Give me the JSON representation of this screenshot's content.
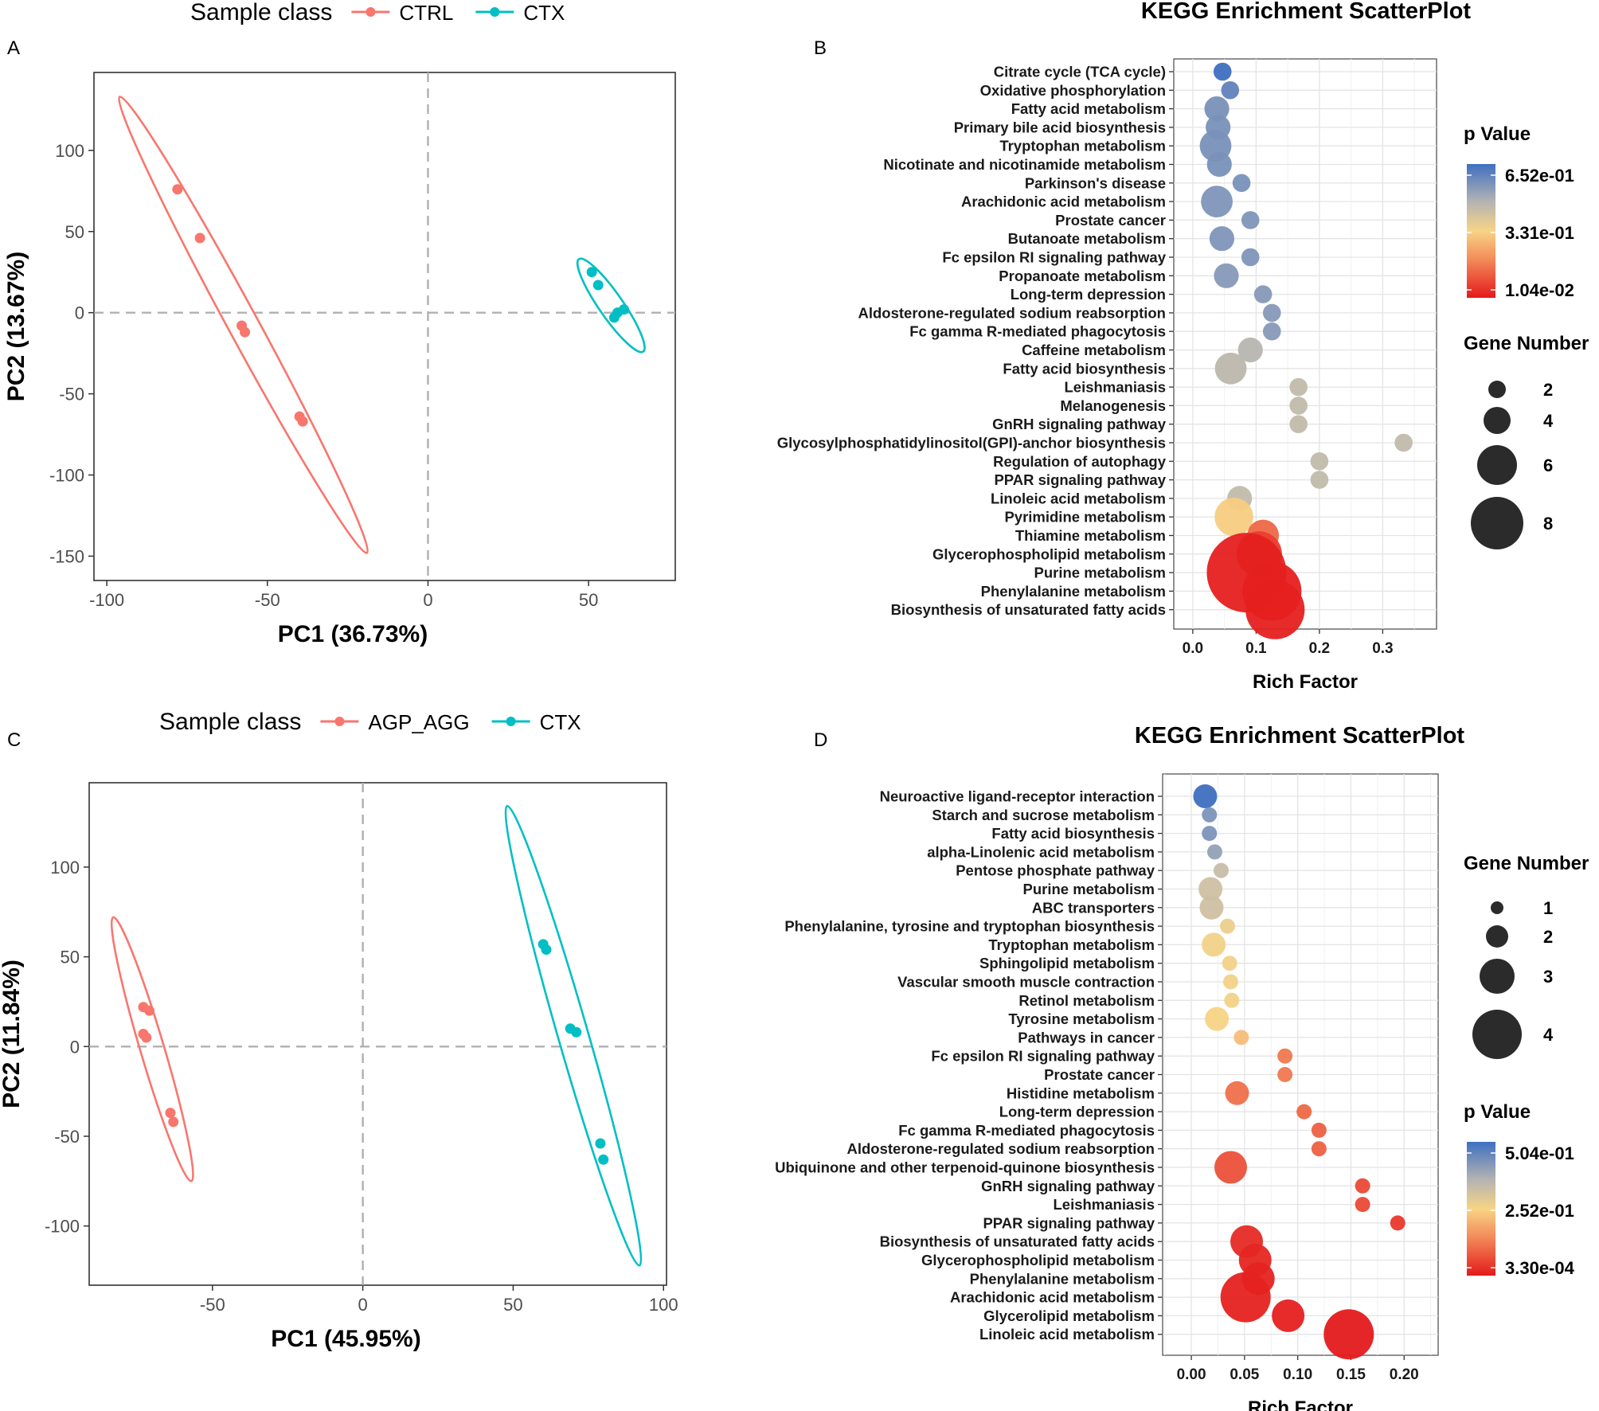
{
  "chart_data": [
    {
      "panel": "A",
      "type": "scatter",
      "legend_title": "Sample class",
      "xlabel": "PC1 (36.73%)",
      "ylabel": "PC2 (13.67%)",
      "xlim": [
        -104,
        77
      ],
      "ylim": [
        -165,
        148
      ],
      "xticks": [
        -100,
        -50,
        0,
        50
      ],
      "yticks": [
        -150,
        -100,
        -50,
        0,
        50,
        100
      ],
      "tick_labels_x": [
        "-100",
        "-50",
        "0",
        "50"
      ],
      "tick_labels_y": [
        "-150",
        "-100",
        "-50",
        "0",
        "50",
        "100"
      ],
      "series": [
        {
          "name": "CTRL",
          "color": "#F8766D",
          "points": [
            [
              -78,
              76
            ],
            [
              -71,
              46
            ],
            [
              -58,
              -8
            ],
            [
              -57,
              -12
            ],
            [
              -40,
              -64
            ],
            [
              -39,
              -67
            ]
          ],
          "ellipse": [
            [
              -96,
              133
            ],
            [
              -19,
              -148
            ]
          ]
        },
        {
          "name": "CTX",
          "color": "#00BFC4",
          "points": [
            [
              51,
              25
            ],
            [
              53,
              17
            ],
            [
              61,
              2
            ],
            [
              59,
              0
            ],
            [
              58,
              -3
            ]
          ],
          "ellipse": [
            [
              47,
              33
            ],
            [
              67,
              -24
            ]
          ]
        }
      ]
    },
    {
      "panel": "B",
      "type": "scatter",
      "title": "KEGG Enrichment ScatterPlot",
      "xlabel": "Rich Factor",
      "ylabel": "",
      "xlim": [
        -0.03,
        0.385
      ],
      "xticks": [
        0.0,
        0.1,
        0.2,
        0.3
      ],
      "tick_labels_x": [
        "0.0",
        "0.1",
        "0.2",
        "0.3"
      ],
      "categories": [
        "Citrate cycle (TCA cycle)",
        "Oxidative phosphorylation",
        "Fatty acid metabolism",
        "Primary bile acid biosynthesis",
        "Tryptophan metabolism",
        "Nicotinate and nicotinamide metabolism",
        "Parkinson's disease",
        "Arachidonic acid metabolism",
        "Prostate cancer",
        "Butanoate metabolism",
        "Fc epsilon RI signaling pathway",
        "Propanoate metabolism",
        "Long-term depression",
        "Aldosterone-regulated sodium reabsorption",
        "Fc gamma R-mediated phagocytosis",
        "Caffeine metabolism",
        "Fatty acid biosynthesis",
        "Leishmaniasis",
        "Melanogenesis",
        "GnRH signaling pathway",
        "Glycosylphosphatidylinositol(GPI)-anchor biosynthesis",
        "Regulation of autophagy",
        "PPAR signaling pathway",
        "Linoleic acid metabolism",
        "Pyrimidine metabolism",
        "Thiamine metabolism",
        "Glycerophospholipid metabolism",
        "Purine metabolism",
        "Phenylalanine metabolism",
        "Biosynthesis of unsaturated fatty acids"
      ],
      "rich_factor": [
        0.047,
        0.059,
        0.038,
        0.04,
        0.036,
        0.042,
        0.077,
        0.038,
        0.091,
        0.046,
        0.091,
        0.053,
        0.111,
        0.125,
        0.125,
        0.091,
        0.06,
        0.167,
        0.167,
        0.167,
        0.333,
        0.2,
        0.2,
        0.074,
        0.065,
        0.111,
        0.105,
        0.085,
        0.125,
        0.13
      ],
      "gene_number": [
        1,
        1,
        2,
        2,
        3,
        2,
        1,
        3,
        1,
        2,
        1,
        2,
        1,
        1,
        1,
        2,
        3,
        1,
        1,
        1,
        1,
        1,
        1,
        2,
        4,
        3,
        5,
        10,
        7,
        7
      ],
      "p_value": [
        0.652,
        0.6,
        0.56,
        0.56,
        0.56,
        0.56,
        0.56,
        0.55,
        0.55,
        0.55,
        0.55,
        0.54,
        0.54,
        0.54,
        0.54,
        0.46,
        0.45,
        0.44,
        0.44,
        0.44,
        0.44,
        0.44,
        0.44,
        0.44,
        0.31,
        0.13,
        0.06,
        0.0104,
        0.0104,
        0.0104
      ],
      "legend": {
        "color_title": "p Value",
        "color_labels": [
          "6.52e-01",
          "3.31e-01",
          "1.04e-02"
        ],
        "size_title": "Gene Number",
        "size_labels": [
          "2",
          "4",
          "6",
          "8"
        ]
      }
    },
    {
      "panel": "C",
      "type": "scatter",
      "legend_title": "Sample class",
      "xlabel": "PC1 (45.95%)",
      "ylabel": "PC2 (11.84%)",
      "xlim": [
        -91,
        101
      ],
      "ylim": [
        -133,
        147
      ],
      "xticks": [
        -50,
        0,
        50,
        100
      ],
      "yticks": [
        -100,
        -50,
        0,
        50,
        100
      ],
      "tick_labels_x": [
        "-50",
        "0",
        "50",
        "100"
      ],
      "tick_labels_y": [
        "-100",
        "-50",
        "0",
        "50",
        "100"
      ],
      "series": [
        {
          "name": "AGP_AGG",
          "color": "#F8766D",
          "points": [
            [
              -73,
              22
            ],
            [
              -71,
              20
            ],
            [
              -73,
              7
            ],
            [
              -72,
              5
            ],
            [
              -64,
              -37
            ],
            [
              -63,
              -42
            ]
          ],
          "ellipse": [
            [
              -83,
              72
            ],
            [
              -57,
              -75
            ]
          ]
        },
        {
          "name": "CTX",
          "color": "#00BFC4",
          "points": [
            [
              60,
              57
            ],
            [
              61,
              54
            ],
            [
              69,
              10
            ],
            [
              71,
              8
            ],
            [
              79,
              -54
            ],
            [
              80,
              -63
            ]
          ],
          "ellipse": [
            [
              48,
              134
            ],
            [
              92,
              -122
            ]
          ]
        }
      ]
    },
    {
      "panel": "D",
      "type": "scatter",
      "title": "KEGG Enrichment ScatterPlot",
      "xlabel": "Rich Factor",
      "ylabel": "",
      "xlim": [
        -0.027,
        0.232
      ],
      "xticks": [
        0.0,
        0.05,
        0.1,
        0.15,
        0.2
      ],
      "tick_labels_x": [
        "0.00",
        "0.05",
        "0.10",
        "0.15",
        "0.20"
      ],
      "categories": [
        "Neuroactive ligand-receptor interaction",
        "Starch and sucrose metabolism",
        "Fatty acid biosynthesis",
        "alpha-Linolenic acid metabolism",
        "Pentose phosphate pathway",
        "Purine metabolism",
        "ABC transporters",
        "Phenylalanine, tyrosine and tryptophan biosynthesis",
        "Tryptophan metabolism",
        "Sphingolipid metabolism",
        "Vascular smooth muscle contraction",
        "Retinol metabolism",
        "Tyrosine metabolism",
        "Pathways in cancer",
        "Fc epsilon RI signaling pathway",
        "Prostate cancer",
        "Histidine metabolism",
        "Long-term depression",
        "Fc gamma R-mediated phagocytosis",
        "Aldosterone-regulated sodium reabsorption",
        "Ubiquinone and other terpenoid-quinone biosynthesis",
        "GnRH signaling pathway",
        "Leishmaniasis",
        "PPAR signaling pathway",
        "Biosynthesis of unsaturated fatty acids",
        "Glycerophospholipid metabolism",
        "Phenylalanine metabolism",
        "Arachidonic acid metabolism",
        "Glycerolipid metabolism",
        "Linoleic acid metabolism"
      ],
      "rich_factor": [
        0.013,
        0.017,
        0.017,
        0.022,
        0.028,
        0.018,
        0.019,
        0.034,
        0.021,
        0.036,
        0.037,
        0.038,
        0.024,
        0.047,
        0.088,
        0.088,
        0.043,
        0.106,
        0.12,
        0.12,
        0.037,
        0.161,
        0.161,
        0.194,
        0.052,
        0.06,
        0.063,
        0.051,
        0.091,
        0.148
      ],
      "gene_number": [
        2,
        1,
        1,
        1,
        1,
        2,
        2,
        1,
        2,
        1,
        1,
        1,
        2,
        1,
        1,
        1,
        2,
        1,
        1,
        1,
        3,
        1,
        1,
        1,
        3,
        3,
        3,
        5,
        3,
        5
      ],
      "p_value": [
        0.504,
        0.43,
        0.43,
        0.4,
        0.33,
        0.32,
        0.32,
        0.27,
        0.26,
        0.26,
        0.26,
        0.26,
        0.25,
        0.22,
        0.12,
        0.12,
        0.11,
        0.1,
        0.09,
        0.09,
        0.07,
        0.06,
        0.06,
        0.04,
        0.02,
        0.015,
        0.012,
        0.01,
        0.008,
        0.0003
      ],
      "legend": {
        "color_title": "p Value",
        "color_labels": [
          "5.04e-01",
          "2.52e-01",
          "3.30e-04"
        ],
        "size_title": "Gene Number",
        "size_labels": [
          "1",
          "2",
          "3",
          "4"
        ]
      }
    }
  ]
}
